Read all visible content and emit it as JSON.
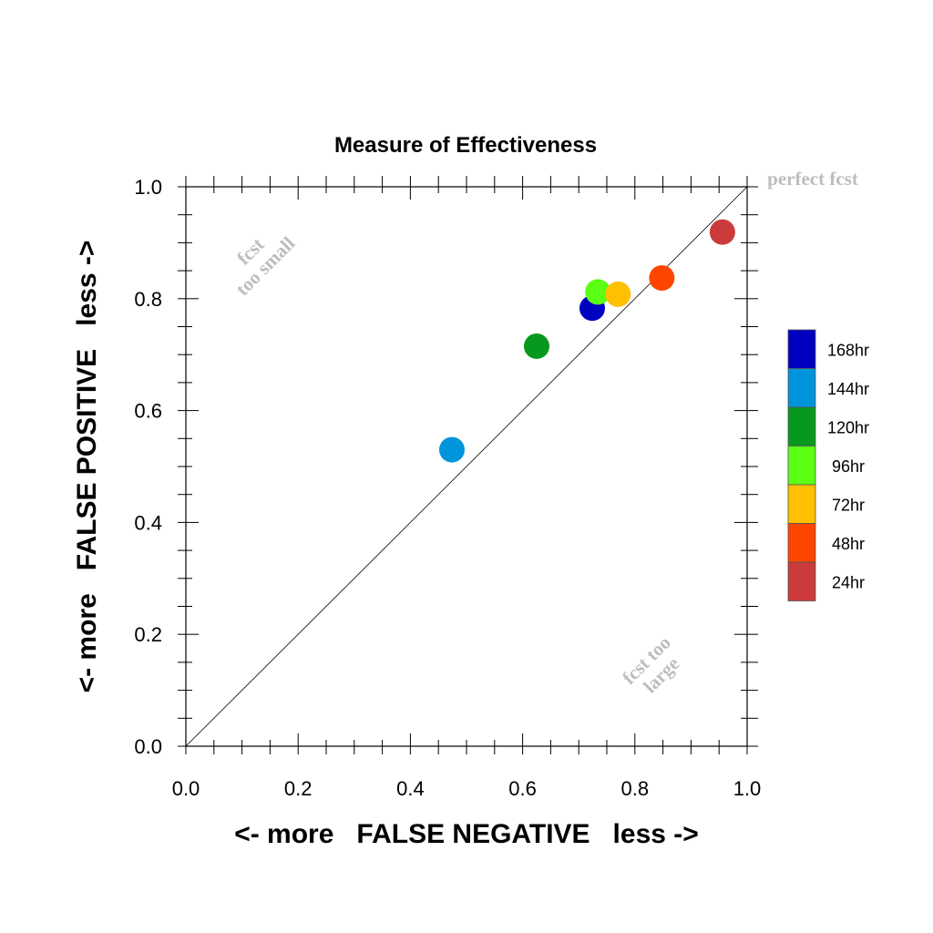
{
  "chart_data": {
    "type": "scatter",
    "title": "Measure of Effectiveness",
    "xlabel": "<- more   FALSE NEGATIVE   less ->",
    "ylabel": "<- more   FALSE POSITIVE   less ->",
    "xlim": [
      0.0,
      1.0
    ],
    "ylim": [
      0.0,
      1.0
    ],
    "x_ticks": [
      "0.0",
      "0.2",
      "0.4",
      "0.6",
      "0.8",
      "1.0"
    ],
    "y_ticks": [
      "0.0",
      "0.2",
      "0.4",
      "0.6",
      "0.8",
      "1.0"
    ],
    "grid": false,
    "diagonal_line": true,
    "annotations": {
      "perfect": "perfect fcst",
      "too_small": [
        "fcst",
        "too small"
      ],
      "too_large": [
        "fcst too",
        "large"
      ]
    },
    "legend_position": "right",
    "series": [
      {
        "name": "168hr",
        "color": "#0000c0",
        "x": 0.724,
        "y": 0.783
      },
      {
        "name": "144hr",
        "color": "#0094dc",
        "x": 0.474,
        "y": 0.53
      },
      {
        "name": "120hr",
        "color": "#07991d",
        "x": 0.625,
        "y": 0.715
      },
      {
        "name": "96hr",
        "color": "#5aff14",
        "x": 0.734,
        "y": 0.812
      },
      {
        "name": "72hr",
        "color": "#ffc000",
        "x": 0.77,
        "y": 0.808
      },
      {
        "name": "48hr",
        "color": "#ff4600",
        "x": 0.848,
        "y": 0.837
      },
      {
        "name": "24hr",
        "color": "#cc3b3b",
        "x": 0.956,
        "y": 0.919
      }
    ]
  }
}
